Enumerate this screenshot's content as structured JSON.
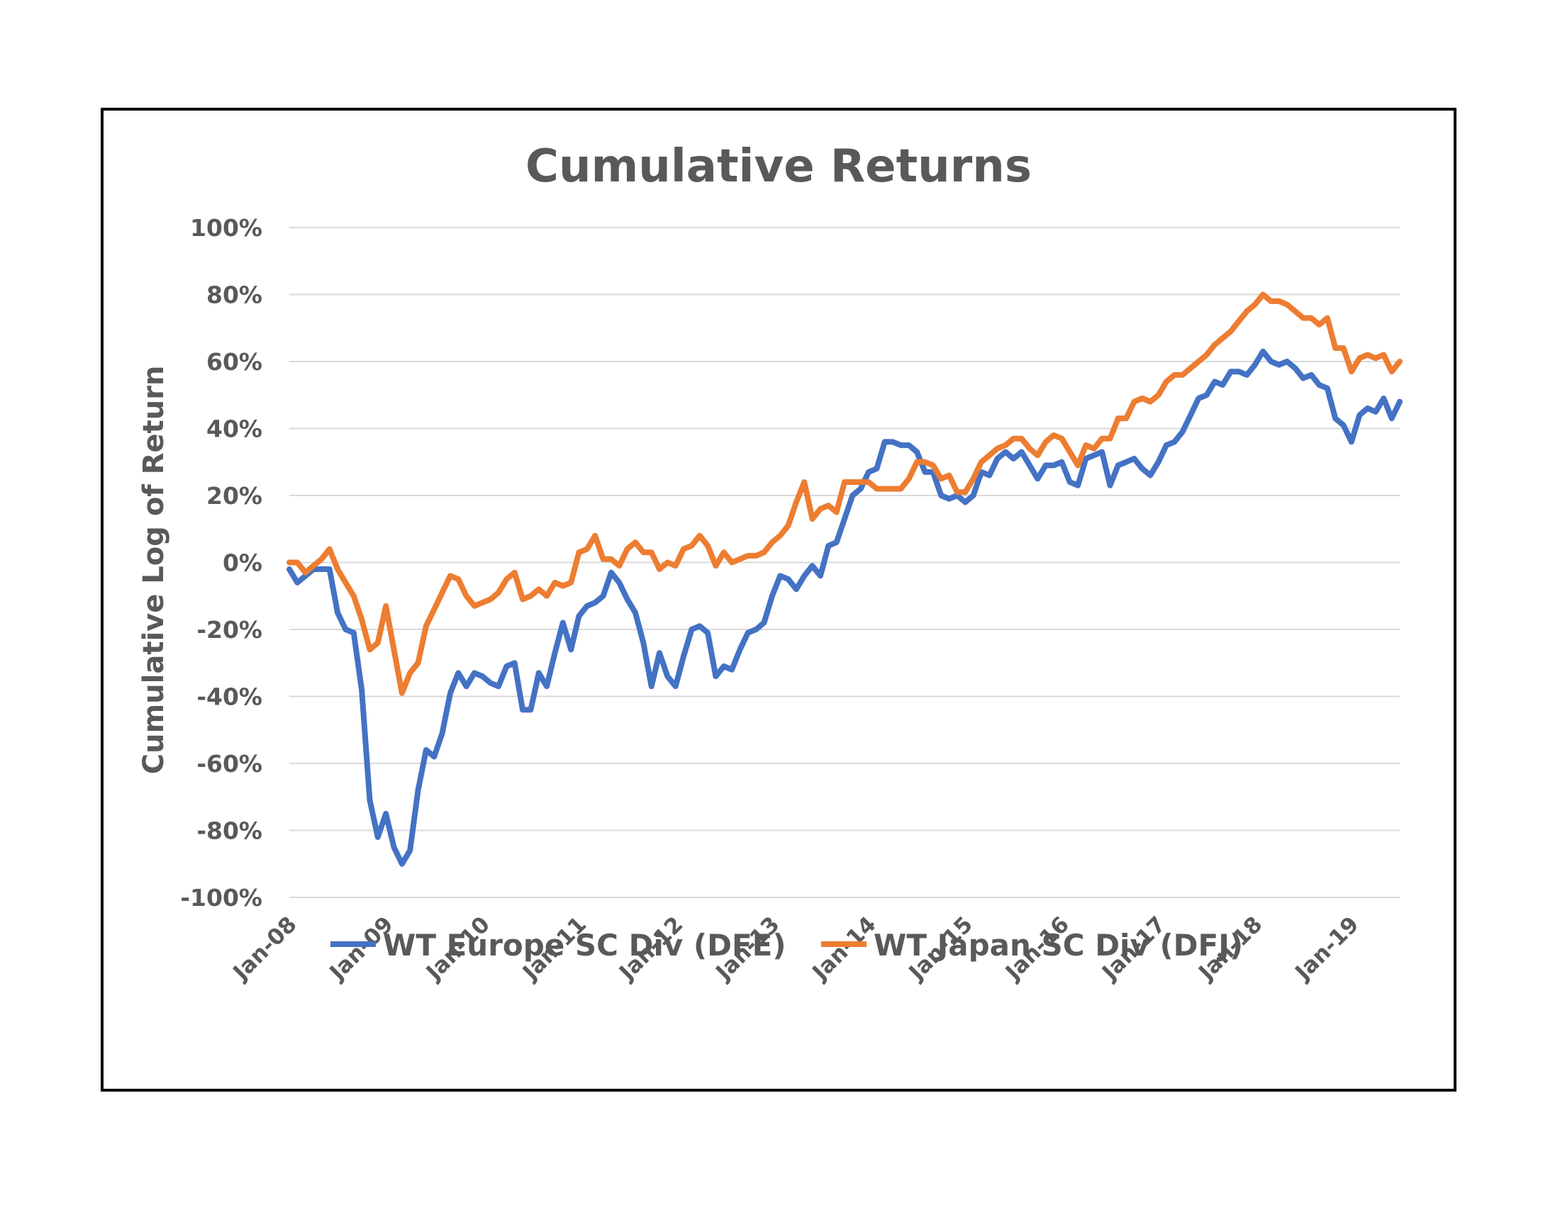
{
  "chart_data": {
    "type": "line",
    "title": "Cumulative Returns",
    "ylabel": "Cumulative Log of Return",
    "xlabel": "",
    "ylim": [
      -100,
      100
    ],
    "yticks": [
      100,
      80,
      60,
      40,
      20,
      0,
      -20,
      -40,
      -60,
      -80,
      -100
    ],
    "ytick_format": "%",
    "x_start": "2008-01",
    "x_end": "2019-07",
    "xtick_labels": [
      "Jan-08",
      "Jan-09",
      "Jan-10",
      "Jan-11",
      "Jan-12",
      "Jan-13",
      "Jan-14",
      "Jan-15",
      "Jan-16",
      "Jan-17",
      "Jan-18",
      "Jan-19"
    ],
    "grid": true,
    "legend_position": "bottom",
    "series": [
      {
        "name": "WT Europe SC Div (DFE)",
        "color": "#4472c4",
        "points": [
          [
            "2008-01",
            -2
          ],
          [
            "2008-02",
            -6
          ],
          [
            "2008-03",
            -4
          ],
          [
            "2008-04",
            -2
          ],
          [
            "2008-05",
            -2
          ],
          [
            "2008-06",
            -2
          ],
          [
            "2008-07",
            -15
          ],
          [
            "2008-08",
            -20
          ],
          [
            "2008-09",
            -21
          ],
          [
            "2008-10",
            -38
          ],
          [
            "2008-11",
            -71
          ],
          [
            "2008-12",
            -82
          ],
          [
            "2009-01",
            -75
          ],
          [
            "2009-02",
            -85
          ],
          [
            "2009-03",
            -90
          ],
          [
            "2009-04",
            -86
          ],
          [
            "2009-05",
            -68
          ],
          [
            "2009-06",
            -56
          ],
          [
            "2009-07",
            -58
          ],
          [
            "2009-08",
            -51
          ],
          [
            "2009-09",
            -39
          ],
          [
            "2009-10",
            -33
          ],
          [
            "2009-11",
            -37
          ],
          [
            "2009-12",
            -33
          ],
          [
            "2010-01",
            -34
          ],
          [
            "2010-02",
            -36
          ],
          [
            "2010-03",
            -37
          ],
          [
            "2010-04",
            -31
          ],
          [
            "2010-05",
            -30
          ],
          [
            "2010-06",
            -44
          ],
          [
            "2010-07",
            -44
          ],
          [
            "2010-08",
            -33
          ],
          [
            "2010-09",
            -37
          ],
          [
            "2010-10",
            -27
          ],
          [
            "2010-11",
            -18
          ],
          [
            "2010-12",
            -26
          ],
          [
            "2011-01",
            -16
          ],
          [
            "2011-02",
            -13
          ],
          [
            "2011-03",
            -12
          ],
          [
            "2011-04",
            -10
          ],
          [
            "2011-05",
            -3
          ],
          [
            "2011-06",
            -6
          ],
          [
            "2011-07",
            -11
          ],
          [
            "2011-08",
            -15
          ],
          [
            "2011-09",
            -24
          ],
          [
            "2011-10",
            -37
          ],
          [
            "2011-11",
            -27
          ],
          [
            "2011-12",
            -34
          ],
          [
            "2012-01",
            -37
          ],
          [
            "2012-02",
            -28
          ],
          [
            "2012-03",
            -20
          ],
          [
            "2012-04",
            -19
          ],
          [
            "2012-05",
            -21
          ],
          [
            "2012-06",
            -34
          ],
          [
            "2012-07",
            -31
          ],
          [
            "2012-08",
            -32
          ],
          [
            "2012-09",
            -26
          ],
          [
            "2012-10",
            -21
          ],
          [
            "2012-11",
            -20
          ],
          [
            "2012-12",
            -18
          ],
          [
            "2013-01",
            -10
          ],
          [
            "2013-02",
            -4
          ],
          [
            "2013-03",
            -5
          ],
          [
            "2013-04",
            -8
          ],
          [
            "2013-05",
            -4
          ],
          [
            "2013-06",
            -1
          ],
          [
            "2013-07",
            -4
          ],
          [
            "2013-08",
            5
          ],
          [
            "2013-09",
            6
          ],
          [
            "2013-10",
            13
          ],
          [
            "2013-11",
            20
          ],
          [
            "2013-12",
            22
          ],
          [
            "2014-01",
            27
          ],
          [
            "2014-02",
            28
          ],
          [
            "2014-03",
            36
          ],
          [
            "2014-04",
            36
          ],
          [
            "2014-05",
            35
          ],
          [
            "2014-06",
            35
          ],
          [
            "2014-07",
            33
          ],
          [
            "2014-08",
            27
          ],
          [
            "2014-09",
            27
          ],
          [
            "2014-10",
            20
          ],
          [
            "2014-11",
            19
          ],
          [
            "2014-12",
            20
          ],
          [
            "2015-01",
            18
          ],
          [
            "2015-02",
            20
          ],
          [
            "2015-03",
            27
          ],
          [
            "2015-04",
            26
          ],
          [
            "2015-05",
            31
          ],
          [
            "2015-06",
            33
          ],
          [
            "2015-07",
            31
          ],
          [
            "2015-08",
            33
          ],
          [
            "2015-09",
            29
          ],
          [
            "2015-10",
            25
          ],
          [
            "2015-11",
            29
          ],
          [
            "2015-12",
            29
          ],
          [
            "2016-01",
            30
          ],
          [
            "2016-02",
            24
          ],
          [
            "2016-03",
            23
          ],
          [
            "2016-04",
            31
          ],
          [
            "2016-05",
            32
          ],
          [
            "2016-06",
            33
          ],
          [
            "2016-07",
            23
          ],
          [
            "2016-08",
            29
          ],
          [
            "2016-09",
            30
          ],
          [
            "2016-10",
            31
          ],
          [
            "2016-11",
            28
          ],
          [
            "2016-12",
            26
          ],
          [
            "2017-01",
            30
          ],
          [
            "2017-02",
            35
          ],
          [
            "2017-03",
            36
          ],
          [
            "2017-04",
            39
          ],
          [
            "2017-05",
            44
          ],
          [
            "2017-06",
            49
          ],
          [
            "2017-07",
            50
          ],
          [
            "2017-08",
            54
          ],
          [
            "2017-09",
            53
          ],
          [
            "2017-10",
            57
          ],
          [
            "2017-11",
            57
          ],
          [
            "2017-12",
            56
          ],
          [
            "2018-01",
            59
          ],
          [
            "2018-02",
            63
          ],
          [
            "2018-03",
            60
          ],
          [
            "2018-04",
            59
          ],
          [
            "2018-05",
            60
          ],
          [
            "2018-06",
            58
          ],
          [
            "2018-07",
            55
          ],
          [
            "2018-08",
            56
          ],
          [
            "2018-09",
            53
          ],
          [
            "2018-10",
            52
          ],
          [
            "2018-11",
            43
          ],
          [
            "2018-12",
            41
          ],
          [
            "2019-01",
            36
          ],
          [
            "2019-02",
            44
          ],
          [
            "2019-03",
            46
          ],
          [
            "2019-04",
            45
          ],
          [
            "2019-05",
            49
          ],
          [
            "2019-06",
            43
          ],
          [
            "2019-07",
            48
          ]
        ]
      },
      {
        "name": "WT Japan SC Div (DFJ)",
        "color": "#ed7d31",
        "points": [
          [
            "2008-01",
            0
          ],
          [
            "2008-02",
            0
          ],
          [
            "2008-03",
            -3
          ],
          [
            "2008-04",
            -1
          ],
          [
            "2008-05",
            1
          ],
          [
            "2008-06",
            4
          ],
          [
            "2008-07",
            -2
          ],
          [
            "2008-08",
            -6
          ],
          [
            "2008-09",
            -10
          ],
          [
            "2008-10",
            -17
          ],
          [
            "2008-11",
            -26
          ],
          [
            "2008-12",
            -24
          ],
          [
            "2009-01",
            -13
          ],
          [
            "2009-02",
            -26
          ],
          [
            "2009-03",
            -39
          ],
          [
            "2009-04",
            -33
          ],
          [
            "2009-05",
            -30
          ],
          [
            "2009-06",
            -19
          ],
          [
            "2009-07",
            -14
          ],
          [
            "2009-08",
            -9
          ],
          [
            "2009-09",
            -4
          ],
          [
            "2009-10",
            -5
          ],
          [
            "2009-11",
            -10
          ],
          [
            "2009-12",
            -13
          ],
          [
            "2010-01",
            -12
          ],
          [
            "2010-02",
            -11
          ],
          [
            "2010-03",
            -9
          ],
          [
            "2010-04",
            -5
          ],
          [
            "2010-05",
            -3
          ],
          [
            "2010-06",
            -11
          ],
          [
            "2010-07",
            -10
          ],
          [
            "2010-08",
            -8
          ],
          [
            "2010-09",
            -10
          ],
          [
            "2010-10",
            -6
          ],
          [
            "2010-11",
            -7
          ],
          [
            "2010-12",
            -6
          ],
          [
            "2011-01",
            3
          ],
          [
            "2011-02",
            4
          ],
          [
            "2011-03",
            8
          ],
          [
            "2011-04",
            1
          ],
          [
            "2011-05",
            1
          ],
          [
            "2011-06",
            -1
          ],
          [
            "2011-07",
            4
          ],
          [
            "2011-08",
            6
          ],
          [
            "2011-09",
            3
          ],
          [
            "2011-10",
            3
          ],
          [
            "2011-11",
            -2
          ],
          [
            "2011-12",
            0
          ],
          [
            "2012-01",
            -1
          ],
          [
            "2012-02",
            4
          ],
          [
            "2012-03",
            5
          ],
          [
            "2012-04",
            8
          ],
          [
            "2012-05",
            5
          ],
          [
            "2012-06",
            -1
          ],
          [
            "2012-07",
            3
          ],
          [
            "2012-08",
            0
          ],
          [
            "2012-09",
            1
          ],
          [
            "2012-10",
            2
          ],
          [
            "2012-11",
            2
          ],
          [
            "2012-12",
            3
          ],
          [
            "2013-01",
            6
          ],
          [
            "2013-02",
            8
          ],
          [
            "2013-03",
            11
          ],
          [
            "2013-04",
            18
          ],
          [
            "2013-05",
            24
          ],
          [
            "2013-06",
            13
          ],
          [
            "2013-07",
            16
          ],
          [
            "2013-08",
            17
          ],
          [
            "2013-09",
            15
          ],
          [
            "2013-10",
            24
          ],
          [
            "2013-11",
            24
          ],
          [
            "2013-12",
            24
          ],
          [
            "2014-01",
            24
          ],
          [
            "2014-02",
            22
          ],
          [
            "2014-03",
            22
          ],
          [
            "2014-04",
            22
          ],
          [
            "2014-05",
            22
          ],
          [
            "2014-06",
            25
          ],
          [
            "2014-07",
            30
          ],
          [
            "2014-08",
            30
          ],
          [
            "2014-09",
            29
          ],
          [
            "2014-10",
            25
          ],
          [
            "2014-11",
            26
          ],
          [
            "2014-12",
            21
          ],
          [
            "2015-01",
            21
          ],
          [
            "2015-02",
            25
          ],
          [
            "2015-03",
            30
          ],
          [
            "2015-04",
            32
          ],
          [
            "2015-05",
            34
          ],
          [
            "2015-06",
            35
          ],
          [
            "2015-07",
            37
          ],
          [
            "2015-08",
            37
          ],
          [
            "2015-09",
            34
          ],
          [
            "2015-10",
            32
          ],
          [
            "2015-11",
            36
          ],
          [
            "2015-12",
            38
          ],
          [
            "2016-01",
            37
          ],
          [
            "2016-02",
            33
          ],
          [
            "2016-03",
            29
          ],
          [
            "2016-04",
            35
          ],
          [
            "2016-05",
            34
          ],
          [
            "2016-06",
            37
          ],
          [
            "2016-07",
            37
          ],
          [
            "2016-08",
            43
          ],
          [
            "2016-09",
            43
          ],
          [
            "2016-10",
            48
          ],
          [
            "2016-11",
            49
          ],
          [
            "2016-12",
            48
          ],
          [
            "2017-01",
            50
          ],
          [
            "2017-02",
            54
          ],
          [
            "2017-03",
            56
          ],
          [
            "2017-04",
            56
          ],
          [
            "2017-05",
            58
          ],
          [
            "2017-06",
            60
          ],
          [
            "2017-07",
            62
          ],
          [
            "2017-08",
            65
          ],
          [
            "2017-09",
            67
          ],
          [
            "2017-10",
            69
          ],
          [
            "2017-11",
            72
          ],
          [
            "2017-12",
            75
          ],
          [
            "2018-01",
            77
          ],
          [
            "2018-02",
            80
          ],
          [
            "2018-03",
            78
          ],
          [
            "2018-04",
            78
          ],
          [
            "2018-05",
            77
          ],
          [
            "2018-06",
            75
          ],
          [
            "2018-07",
            73
          ],
          [
            "2018-08",
            73
          ],
          [
            "2018-09",
            71
          ],
          [
            "2018-10",
            73
          ],
          [
            "2018-11",
            64
          ],
          [
            "2018-12",
            64
          ],
          [
            "2019-01",
            57
          ],
          [
            "2019-02",
            61
          ],
          [
            "2019-03",
            62
          ],
          [
            "2019-04",
            61
          ],
          [
            "2019-05",
            62
          ],
          [
            "2019-06",
            57
          ],
          [
            "2019-07",
            60
          ]
        ]
      }
    ]
  }
}
